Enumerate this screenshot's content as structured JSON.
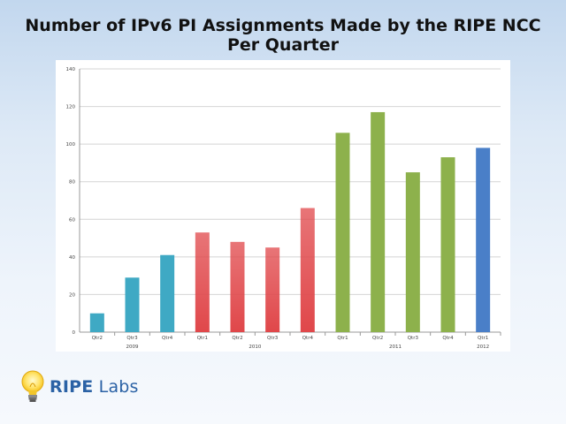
{
  "title": {
    "line1": "Number of IPv6 PI Assignments Made by the RIPE NCC",
    "line2": "Per Quarter"
  },
  "logo": {
    "word1": "RIPE",
    "word2": "Labs",
    "icon": "lightbulb-icon"
  },
  "chart_data": {
    "type": "bar",
    "title": "Number of IPv6 PI Assignments Made by the RIPE NCC Per Quarter",
    "xlabel": "",
    "ylabel": "",
    "ylim": [
      0,
      140
    ],
    "yticks": [
      0,
      20,
      40,
      60,
      80,
      100,
      120,
      140
    ],
    "grid": true,
    "categories": [
      "Qtr2",
      "Qtr3",
      "Qtr4",
      "Qtr1",
      "Qtr2",
      "Qtr3",
      "Qtr4",
      "Qtr1",
      "Qtr2",
      "Qtr3",
      "Qtr4",
      "Qtr1"
    ],
    "values": [
      10,
      29,
      41,
      53,
      48,
      45,
      66,
      106,
      117,
      85,
      93,
      98
    ],
    "year_groups": [
      {
        "label": "2009",
        "start": 0,
        "end": 2,
        "color": "#3fa9c4"
      },
      {
        "label": "2010",
        "start": 3,
        "end": 6,
        "color": "#e0474a"
      },
      {
        "label": "2011",
        "start": 7,
        "end": 10,
        "color": "#8db14c"
      },
      {
        "label": "2012",
        "start": 11,
        "end": 11,
        "color": "#4a7fc8"
      }
    ]
  }
}
